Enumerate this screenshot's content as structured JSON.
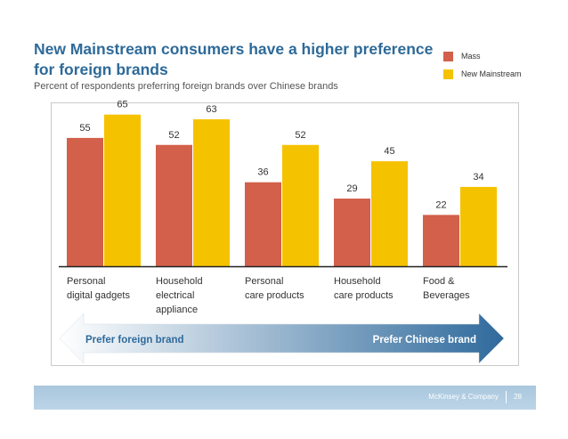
{
  "slide": {
    "title": "New Mainstream consumers have a higher preference for foreign brands",
    "subtitle": "Percent of respondents preferring foreign brands over Chinese brands"
  },
  "legend": [
    {
      "label": "Mass",
      "color": "#d2604a"
    },
    {
      "label": "New Mainstream",
      "color": "#f5c200"
    }
  ],
  "arrow": {
    "left_label": "Prefer foreign brand",
    "right_label": "Prefer Chinese brand",
    "left_color": "#ffffff",
    "right_color": "#2f6a9c"
  },
  "footer": {
    "company": "McKinsey & Company",
    "page": "28"
  },
  "chart_data": {
    "type": "bar",
    "title": "New Mainstream consumers have a higher preference for foreign brands",
    "subtitle": "Percent of respondents preferring foreign brands over Chinese brands",
    "xlabel": "",
    "ylabel": "",
    "ylim": [
      0,
      70
    ],
    "grid": false,
    "legend_position": "top-right",
    "categories": [
      [
        "Personal",
        "digital gadgets"
      ],
      [
        "Household",
        "electrical",
        "appliance"
      ],
      [
        "Personal",
        "care products"
      ],
      [
        "Household",
        "care products"
      ],
      [
        "Food &",
        "Beverages"
      ]
    ],
    "series": [
      {
        "name": "Mass",
        "color": "#d2604a",
        "values": [
          55,
          52,
          36,
          29,
          22
        ]
      },
      {
        "name": "New Mainstream",
        "color": "#f5c200",
        "values": [
          65,
          63,
          52,
          45,
          34
        ]
      }
    ]
  }
}
